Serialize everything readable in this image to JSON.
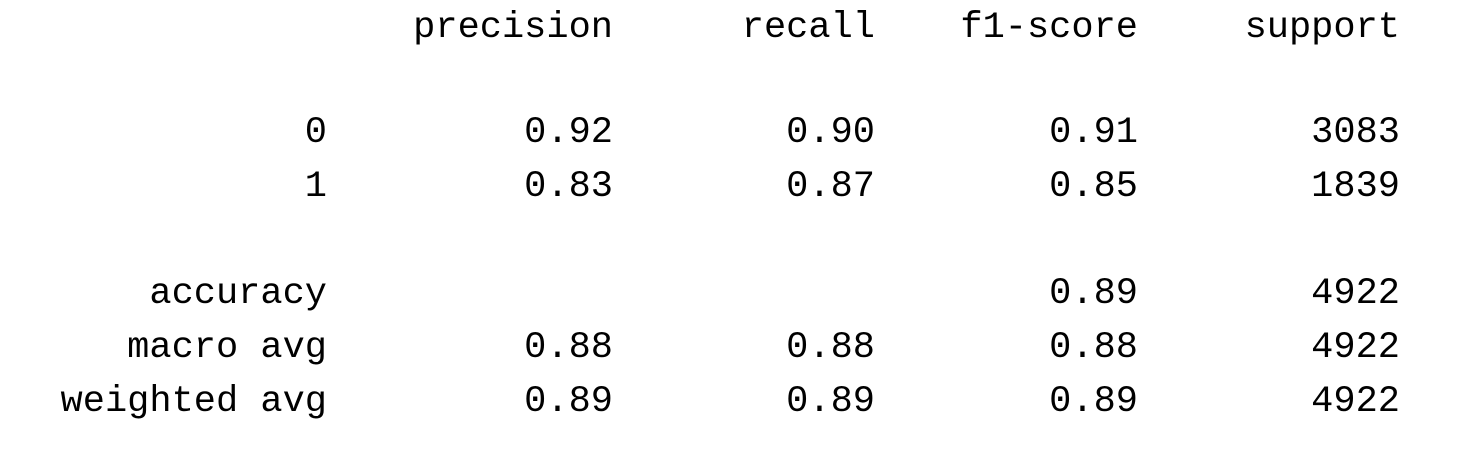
{
  "report": {
    "header": {
      "precision": "precision",
      "recall": "recall",
      "f1_score": "f1-score",
      "support": "support"
    },
    "classes": [
      {
        "label": "0",
        "precision": "0.92",
        "recall": "0.90",
        "f1_score": "0.91",
        "support": "3083"
      },
      {
        "label": "1",
        "precision": "0.83",
        "recall": "0.87",
        "f1_score": "0.85",
        "support": "1839"
      }
    ],
    "accuracy": {
      "label": "accuracy",
      "f1_score": "0.89",
      "support": "4922"
    },
    "macro_avg": {
      "label": "macro avg",
      "precision": "0.88",
      "recall": "0.88",
      "f1_score": "0.88",
      "support": "4922"
    },
    "weighted_avg": {
      "label": "weighted avg",
      "precision": "0.89",
      "recall": "0.89",
      "f1_score": "0.89",
      "support": "4922"
    }
  }
}
